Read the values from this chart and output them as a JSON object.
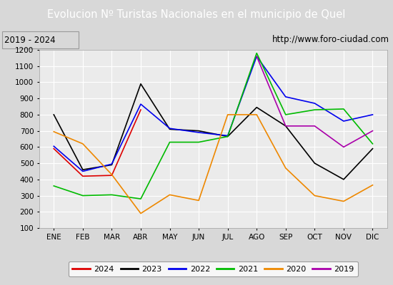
{
  "title": "Evolucion Nº Turistas Nacionales en el municipio de Quel",
  "subtitle_left": "2019 - 2024",
  "subtitle_right": "http://www.foro-ciudad.com",
  "months": [
    "ENE",
    "FEB",
    "MAR",
    "ABR",
    "MAY",
    "JUN",
    "JUL",
    "AGO",
    "SEP",
    "OCT",
    "NOV",
    "DIC"
  ],
  "ylim": [
    100,
    1200
  ],
  "yticks": [
    100,
    200,
    300,
    400,
    500,
    600,
    700,
    800,
    900,
    1000,
    1100,
    1200
  ],
  "series": {
    "2024": {
      "values": [
        590,
        420,
        425,
        830,
        null,
        null,
        null,
        null,
        null,
        null,
        null,
        null
      ],
      "color": "#dd0000",
      "linewidth": 1.2
    },
    "2023": {
      "values": [
        800,
        460,
        490,
        990,
        710,
        700,
        665,
        845,
        730,
        500,
        400,
        590
      ],
      "color": "#000000",
      "linewidth": 1.2
    },
    "2022": {
      "values": [
        605,
        450,
        495,
        865,
        715,
        690,
        670,
        1160,
        910,
        870,
        760,
        800
      ],
      "color": "#0000ee",
      "linewidth": 1.2
    },
    "2021": {
      "values": [
        360,
        300,
        305,
        280,
        630,
        630,
        665,
        1180,
        800,
        830,
        835,
        620
      ],
      "color": "#00bb00",
      "linewidth": 1.2
    },
    "2020": {
      "values": [
        695,
        620,
        430,
        190,
        305,
        270,
        800,
        800,
        470,
        300,
        265,
        365
      ],
      "color": "#ee8800",
      "linewidth": 1.2
    },
    "2019": {
      "values": [
        null,
        null,
        null,
        null,
        null,
        null,
        null,
        1160,
        730,
        730,
        600,
        700
      ],
      "color": "#aa00aa",
      "linewidth": 1.2
    }
  },
  "title_bg_color": "#4d7dce",
  "title_color": "#ffffff",
  "plot_bg_color": "#ebebeb",
  "outer_bg_color": "#d8d8d8",
  "grid_color": "#ffffff",
  "title_fontsize": 10.5,
  "subtitle_fontsize": 8.5,
  "tick_fontsize": 7.5,
  "legend_fontsize": 8
}
